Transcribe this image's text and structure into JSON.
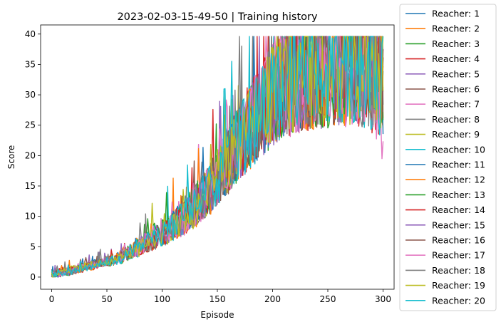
{
  "chart_data": {
    "type": "line",
    "title": "2023-02-03-15-49-50 | Training history",
    "xlabel": "Episode",
    "ylabel": "Score",
    "xlim": [
      -10,
      310
    ],
    "ylim": [
      -2,
      41.5
    ],
    "xticks": [
      0,
      50,
      100,
      150,
      200,
      250,
      300
    ],
    "yticks": [
      0,
      5,
      10,
      15,
      20,
      25,
      30,
      35,
      40
    ],
    "legend_position": "outside-right",
    "grid": false,
    "series_colors": [
      "#1f77b4",
      "#ff7f0e",
      "#2ca02c",
      "#d62728",
      "#9467bd",
      "#8c564b",
      "#e377c2",
      "#7f7f7f",
      "#bcbd22",
      "#17becf",
      "#1f77b4",
      "#ff7f0e",
      "#2ca02c",
      "#d62728",
      "#9467bd",
      "#8c564b",
      "#e377c2",
      "#7f7f7f",
      "#bcbd22",
      "#17becf"
    ],
    "series": [
      {
        "name": "Reacher: 1",
        "values": [
          0.4,
          0.8,
          1.5,
          2.1,
          2.6,
          3.5,
          4.8,
          6.2,
          7.6,
          9.0,
          11.5,
          14.6,
          18.2,
          22.0,
          25.9,
          29.2,
          31.5,
          32.8,
          33.6,
          34.2,
          34.5,
          33.9,
          34.8,
          33.2
        ]
      },
      {
        "name": "Reacher: 2",
        "values": [
          0.6,
          1.1,
          1.2,
          1.9,
          2.8,
          3.3,
          5.2,
          5.8,
          8.1,
          9.6,
          11.1,
          15.2,
          17.6,
          22.8,
          25.1,
          29.8,
          30.9,
          33.4,
          32.9,
          34.9,
          33.8,
          34.6,
          33.5,
          32.1
        ]
      },
      {
        "name": "Reacher: 3",
        "values": [
          0.3,
          0.9,
          1.4,
          2.3,
          2.4,
          3.9,
          4.6,
          6.6,
          7.2,
          9.4,
          12.0,
          14.1,
          18.8,
          21.4,
          26.4,
          28.7,
          31.9,
          32.3,
          34.1,
          33.7,
          35.0,
          34.2,
          34.1,
          33.6
        ]
      },
      {
        "name": "Reacher: 4",
        "values": [
          0.5,
          0.7,
          1.7,
          1.8,
          2.9,
          3.2,
          5.0,
          6.0,
          7.9,
          8.8,
          11.8,
          14.9,
          17.9,
          22.4,
          25.4,
          29.5,
          31.2,
          33.1,
          33.3,
          34.5,
          34.1,
          34.9,
          33.2,
          31.9
        ]
      },
      {
        "name": "Reacher: 5",
        "values": [
          0.2,
          1.0,
          1.3,
          2.2,
          2.5,
          3.7,
          4.4,
          6.4,
          7.4,
          9.2,
          11.3,
          14.4,
          18.5,
          21.7,
          26.1,
          28.9,
          31.6,
          32.6,
          33.8,
          34.0,
          34.7,
          34.4,
          34.4,
          33.0
        ]
      },
      {
        "name": "Reacher: 6",
        "values": [
          0.7,
          0.6,
          1.6,
          2.0,
          2.7,
          3.4,
          5.3,
          5.9,
          7.8,
          9.8,
          11.6,
          14.7,
          17.4,
          22.6,
          25.6,
          29.1,
          31.0,
          32.9,
          33.4,
          34.6,
          33.9,
          34.7,
          33.7,
          32.4
        ]
      },
      {
        "name": "Reacher: 7",
        "values": [
          0.3,
          0.9,
          1.8,
          1.9,
          2.6,
          3.6,
          4.7,
          6.3,
          7.5,
          9.1,
          11.4,
          15.0,
          18.0,
          21.9,
          25.8,
          29.6,
          31.4,
          32.7,
          33.7,
          34.3,
          34.4,
          34.0,
          34.9,
          28.0
        ]
      },
      {
        "name": "Reacher: 8",
        "values": [
          0.5,
          0.8,
          1.2,
          2.4,
          2.8,
          3.3,
          5.1,
          6.1,
          7.7,
          9.3,
          11.9,
          14.3,
          18.3,
          22.2,
          25.2,
          29.0,
          31.8,
          32.5,
          33.5,
          34.1,
          34.6,
          34.3,
          33.4,
          32.8
        ]
      },
      {
        "name": "Reacher: 9",
        "values": [
          0.4,
          1.1,
          1.5,
          2.1,
          2.9,
          3.8,
          4.9,
          6.5,
          7.3,
          9.7,
          11.2,
          14.8,
          17.7,
          22.5,
          26.2,
          29.3,
          31.1,
          33.0,
          33.9,
          34.7,
          33.6,
          34.8,
          33.9,
          32.6
        ]
      },
      {
        "name": "Reacher: 10",
        "values": [
          0.6,
          0.7,
          1.4,
          2.0,
          2.5,
          3.1,
          4.5,
          6.7,
          7.9,
          9.5,
          11.7,
          14.5,
          18.6,
          21.6,
          25.7,
          29.7,
          31.7,
          32.4,
          34.0,
          33.8,
          34.9,
          34.1,
          33.1,
          31.6
        ]
      },
      {
        "name": "Reacher: 11",
        "values": [
          0.3,
          1.0,
          1.6,
          2.3,
          2.7,
          3.5,
          5.4,
          5.7,
          7.6,
          9.9,
          11.0,
          15.1,
          17.5,
          22.7,
          25.3,
          28.8,
          31.3,
          33.2,
          33.2,
          34.4,
          34.2,
          34.5,
          33.6,
          32.2
        ]
      },
      {
        "name": "Reacher: 12",
        "values": [
          0.5,
          0.9,
          1.3,
          1.8,
          2.6,
          3.9,
          4.7,
          6.2,
          7.1,
          9.0,
          11.6,
          14.2,
          18.1,
          22.1,
          26.0,
          29.4,
          31.6,
          32.8,
          33.6,
          34.2,
          34.8,
          33.8,
          34.3,
          33.4
        ]
      },
      {
        "name": "Reacher: 13",
        "values": [
          0.4,
          0.8,
          1.7,
          2.2,
          2.4,
          3.2,
          5.0,
          6.8,
          7.8,
          9.4,
          12.1,
          14.6,
          18.4,
          21.8,
          25.5,
          29.9,
          30.8,
          33.3,
          33.4,
          34.8,
          33.7,
          34.6,
          34.0,
          32.9
        ]
      },
      {
        "name": "Reacher: 14",
        "values": [
          0.7,
          1.2,
          1.1,
          2.5,
          2.8,
          3.6,
          4.6,
          6.0,
          7.4,
          9.6,
          11.3,
          14.9,
          17.8,
          22.3,
          25.9,
          29.2,
          31.9,
          32.6,
          33.8,
          34.0,
          34.3,
          34.9,
          33.5,
          33.1
        ]
      },
      {
        "name": "Reacher: 15",
        "values": [
          0.2,
          0.7,
          1.5,
          1.9,
          2.9,
          3.4,
          5.2,
          6.4,
          7.6,
          9.1,
          11.8,
          14.4,
          18.7,
          22.0,
          25.4,
          28.6,
          31.5,
          32.9,
          33.5,
          34.6,
          34.5,
          34.2,
          34.6,
          32.5
        ]
      },
      {
        "name": "Reacher: 16",
        "values": [
          0.6,
          1.0,
          1.4,
          2.1,
          2.3,
          3.7,
          4.8,
          6.1,
          7.9,
          9.8,
          11.5,
          15.3,
          17.6,
          22.9,
          25.6,
          29.5,
          31.2,
          33.1,
          33.9,
          33.9,
          34.0,
          34.7,
          33.8,
          32.7
        ]
      },
      {
        "name": "Reacher: 17",
        "values": [
          0.4,
          0.9,
          1.9,
          2.0,
          2.6,
          3.3,
          4.9,
          6.6,
          7.2,
          9.2,
          11.4,
          14.7,
          18.2,
          21.5,
          26.3,
          29.1,
          31.0,
          32.5,
          33.3,
          34.5,
          34.7,
          34.4,
          34.2,
          25.0
        ]
      },
      {
        "name": "Reacher: 18",
        "values": [
          0.5,
          0.8,
          1.2,
          2.4,
          2.7,
          3.8,
          5.1,
          5.9,
          7.7,
          9.5,
          11.9,
          14.1,
          18.0,
          22.4,
          25.1,
          29.7,
          31.8,
          33.0,
          34.2,
          34.3,
          34.1,
          33.9,
          33.7,
          33.2
        ]
      },
      {
        "name": "Reacher: 19",
        "values": [
          0.3,
          1.1,
          1.6,
          2.2,
          2.5,
          3.5,
          4.5,
          6.3,
          7.5,
          9.3,
          11.1,
          14.8,
          18.5,
          22.2,
          25.8,
          29.3,
          31.4,
          32.7,
          33.7,
          34.1,
          34.9,
          34.6,
          33.3,
          32.3
        ]
      },
      {
        "name": "Reacher: 20",
        "values": [
          0.6,
          0.7,
          1.3,
          1.9,
          2.8,
          3.2,
          5.3,
          6.5,
          7.3,
          9.7,
          11.7,
          14.5,
          17.9,
          22.6,
          25.2,
          28.9,
          31.3,
          32.8,
          33.4,
          34.7,
          34.4,
          34.1,
          34.5,
          31.8
        ]
      }
    ]
  }
}
